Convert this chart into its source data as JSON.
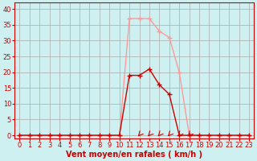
{
  "title": "",
  "xlabel": "Vent moyen/en rafales ( km/h )",
  "bg_color": "#cff0f0",
  "grid_color": "#aaaaaa",
  "xlim": [
    -0.5,
    23.5
  ],
  "ylim": [
    -1,
    42
  ],
  "yticks": [
    0,
    5,
    10,
    15,
    20,
    25,
    30,
    35,
    40
  ],
  "xticks": [
    0,
    1,
    2,
    3,
    4,
    5,
    6,
    7,
    8,
    9,
    10,
    11,
    12,
    13,
    14,
    15,
    16,
    17,
    18,
    19,
    20,
    21,
    22,
    23
  ],
  "line_mean": {
    "x": [
      0,
      1,
      2,
      3,
      4,
      5,
      6,
      7,
      8,
      9,
      10,
      11,
      12,
      13,
      14,
      15,
      16,
      17,
      18,
      19,
      20,
      21,
      22,
      23
    ],
    "y": [
      0,
      0,
      0,
      0,
      0,
      0,
      0,
      0,
      0,
      0,
      0,
      19,
      19,
      21,
      16,
      13,
      0,
      0,
      0,
      0,
      0,
      0,
      0,
      0
    ],
    "color": "#cc0000",
    "marker": "+",
    "markersize": 4,
    "linewidth": 1.0
  },
  "line_gust": {
    "x": [
      0,
      1,
      2,
      3,
      4,
      5,
      6,
      7,
      8,
      9,
      10,
      11,
      12,
      13,
      14,
      15,
      16,
      17,
      18,
      19,
      20,
      21,
      22,
      23
    ],
    "y": [
      0,
      0,
      0,
      0,
      0,
      0,
      0,
      0,
      0,
      0,
      0,
      37,
      37,
      37,
      33,
      31,
      20,
      0,
      0,
      0,
      0,
      0,
      0,
      0
    ],
    "color": "#ff9999",
    "marker": "+",
    "markersize": 4,
    "linewidth": 1.0
  },
  "arrows_x": [
    12,
    13,
    14,
    15,
    16,
    17
  ],
  "arrow_color": "#cc0000",
  "xlabel_color": "#cc0000",
  "xlabel_fontsize": 7,
  "tick_fontsize": 6,
  "tick_color": "#cc0000"
}
